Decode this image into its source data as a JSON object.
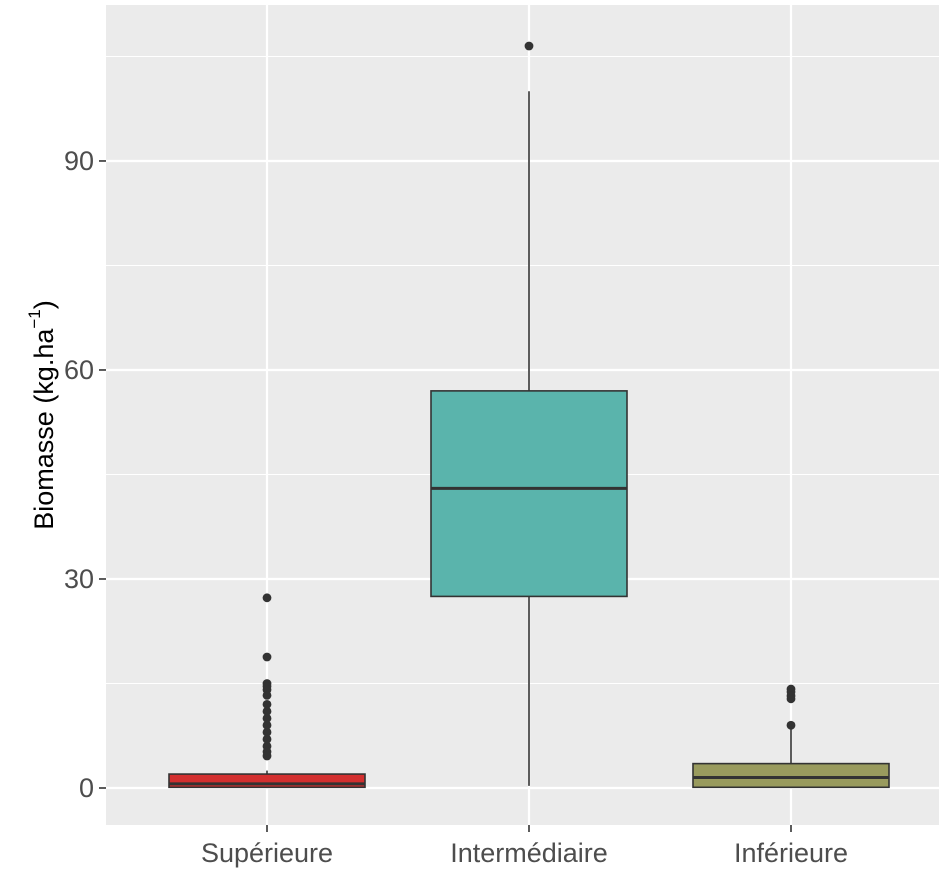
{
  "chart_data": {
    "type": "boxplot",
    "ylabel": {
      "prefix": "Biomasse (kg.ha",
      "superscript": "−1",
      "suffix": ")"
    },
    "xlabel": "",
    "ylim": [
      -5,
      110
    ],
    "y_ticks": [
      0,
      30,
      60,
      90
    ],
    "y_tick_labels": [
      "0",
      "30",
      "60",
      "90"
    ],
    "grid": true,
    "panel_background": "#ebebeb",
    "categories": [
      "Supérieure",
      "Intermédiaire",
      "Inférieure"
    ],
    "boxes": [
      {
        "category": "Supérieure",
        "color": "#d32f2f",
        "min": 0,
        "q1": 0.1,
        "median": 0.6,
        "q3": 2,
        "max": 2.5,
        "outliers": [
          27.3,
          18.8,
          15,
          14.6,
          14.1,
          13.3,
          12,
          11,
          10,
          9,
          8,
          7,
          6,
          5.2,
          4.6
        ]
      },
      {
        "category": "Intermédiaire",
        "color": "#5ab4ac",
        "min": 0.3,
        "q1": 27.5,
        "median": 43,
        "q3": 57,
        "max": 100,
        "outliers": [
          106.5
        ]
      },
      {
        "category": "Inférieure",
        "color": "#999b5e",
        "min": 0,
        "q1": 0.1,
        "median": 1.5,
        "q3": 3.5,
        "max": 9,
        "outliers": [
          14.2,
          13.8,
          13.2,
          12.8,
          9
        ]
      }
    ]
  }
}
